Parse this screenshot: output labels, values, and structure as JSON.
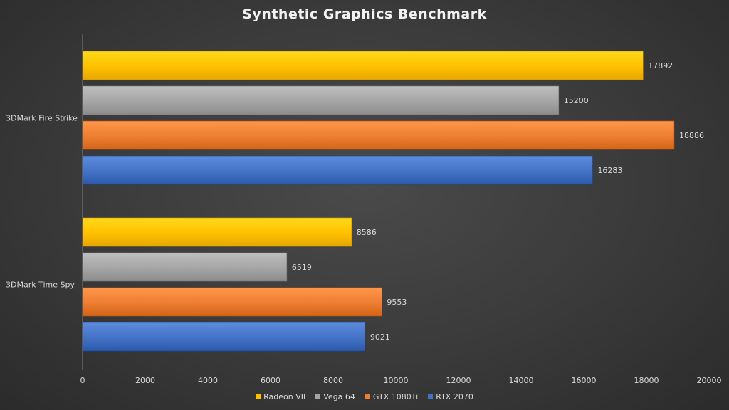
{
  "chart_data": {
    "type": "bar",
    "orientation": "horizontal",
    "title": "Synthetic Graphics Benchmark",
    "categories": [
      "3DMark Fire Strike",
      "3DMark Time Spy"
    ],
    "series": [
      {
        "name": "Radeon VII",
        "values": [
          17892,
          8586
        ],
        "color": "#ffc000"
      },
      {
        "name": "Vega 64",
        "values": [
          15200,
          6519
        ],
        "color": "#a5a5a5"
      },
      {
        "name": "GTX 1080Ti",
        "values": [
          18886,
          9553
        ],
        "color": "#ed7d31"
      },
      {
        "name": "RTX 2070",
        "values": [
          16283,
          9021
        ],
        "color": "#4472c4"
      }
    ],
    "xlim": [
      0,
      20000
    ],
    "xticks": [
      0,
      2000,
      4000,
      6000,
      8000,
      10000,
      12000,
      14000,
      16000,
      18000,
      20000
    ],
    "xlabel": "",
    "ylabel": "",
    "grid": false,
    "legend_position": "bottom"
  }
}
